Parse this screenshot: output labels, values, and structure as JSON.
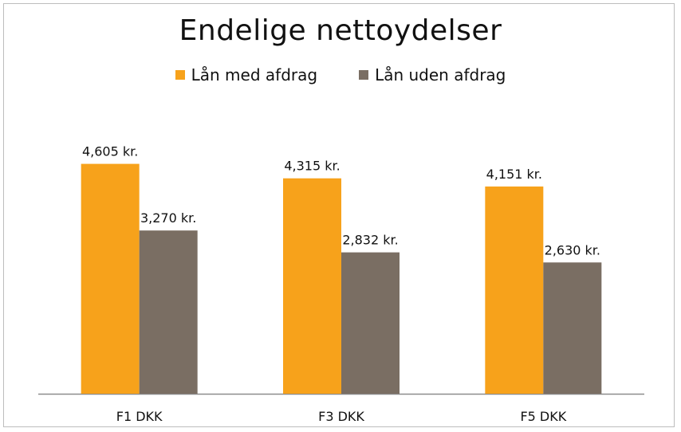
{
  "chart_data": {
    "type": "bar",
    "title": "Endelige nettoydelser",
    "xlabel": "",
    "ylabel": "",
    "ylim": [
      0,
      5700
    ],
    "grid": false,
    "legend_position": "top",
    "categories": [
      "F1 DKK",
      "F3 DKK",
      "F5 DKK"
    ],
    "series": [
      {
        "name": "Lån med afdrag",
        "color": "#F7A21B",
        "values": [
          4605,
          4315,
          4151
        ],
        "labels": [
          "4,605 kr.",
          "4,315 kr.",
          "4,151 kr."
        ]
      },
      {
        "name": "Lån uden afdrag",
        "color": "#7A6E63",
        "values": [
          3270,
          2832,
          2630
        ],
        "labels": [
          "3,270 kr.",
          "2,832 kr.",
          "2,630 kr."
        ]
      }
    ]
  }
}
